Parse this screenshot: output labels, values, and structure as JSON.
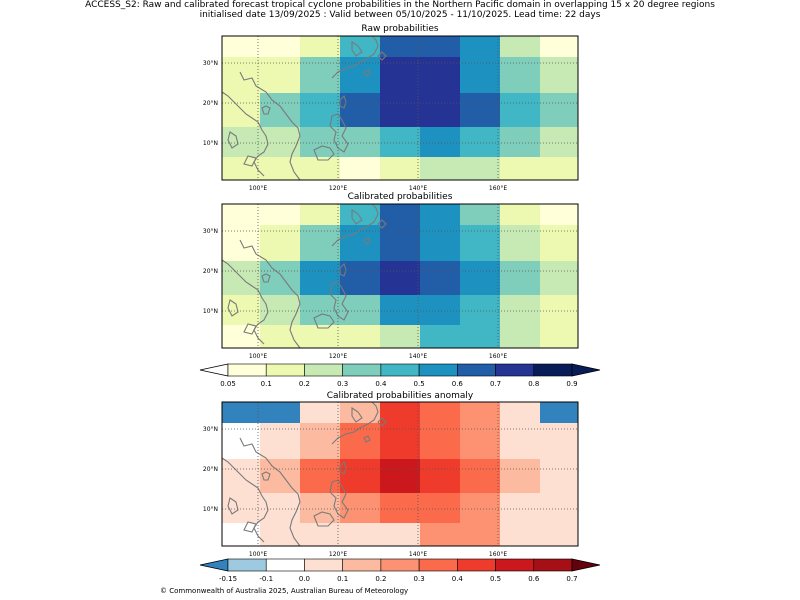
{
  "header": {
    "line1": "ACCESS_S2: Raw and calibrated forecast tropical cyclone probabilities in the Northern Pacific domain in overlapping 15 x 20 degree regions",
    "line2": "initialised date 13/09/2025 :  Valid between 05/10/2025 - 11/10/2025. Lead time: 22 days"
  },
  "maps": [
    {
      "title": "Raw probabilities",
      "grid": [
        [
          0.05,
          0.05,
          0.15,
          0.45,
          0.65,
          0.65,
          0.55,
          0.25,
          0.05
        ],
        [
          0.15,
          0.15,
          0.35,
          0.55,
          0.75,
          0.75,
          0.55,
          0.35,
          0.25
        ],
        [
          0.15,
          0.35,
          0.45,
          0.65,
          0.75,
          0.75,
          0.65,
          0.45,
          0.35
        ],
        [
          0.25,
          0.25,
          0.35,
          0.35,
          0.45,
          0.55,
          0.45,
          0.35,
          0.25
        ],
        [
          0.15,
          0.15,
          0.15,
          0.05,
          0.15,
          0.25,
          0.25,
          0.15,
          0.15
        ]
      ]
    },
    {
      "title": "Calibrated probabilities",
      "grid": [
        [
          0.05,
          0.05,
          0.15,
          0.45,
          0.65,
          0.55,
          0.35,
          0.15,
          0.05
        ],
        [
          0.05,
          0.15,
          0.35,
          0.55,
          0.65,
          0.55,
          0.45,
          0.25,
          0.15
        ],
        [
          0.25,
          0.35,
          0.55,
          0.65,
          0.75,
          0.65,
          0.55,
          0.35,
          0.25
        ],
        [
          0.15,
          0.25,
          0.35,
          0.35,
          0.55,
          0.55,
          0.45,
          0.25,
          0.15
        ],
        [
          0.05,
          0.15,
          0.15,
          0.15,
          0.25,
          0.45,
          0.45,
          0.25,
          0.15
        ]
      ]
    },
    {
      "title": "Calibrated probabilities anomaly",
      "grid": [
        [
          -0.2,
          -0.2,
          0.0,
          0.15,
          0.45,
          0.35,
          0.25,
          0.0,
          -0.2
        ],
        [
          -0.1,
          0.0,
          0.15,
          0.35,
          0.45,
          0.35,
          0.25,
          0.05,
          0.0
        ],
        [
          0.05,
          0.15,
          0.35,
          0.45,
          0.55,
          0.45,
          0.35,
          0.15,
          0.05
        ],
        [
          0.0,
          0.0,
          0.15,
          0.25,
          0.35,
          0.35,
          0.25,
          0.05,
          0.0
        ],
        [
          -0.1,
          0.0,
          0.0,
          0.0,
          0.05,
          0.25,
          0.25,
          0.05,
          0.0
        ]
      ]
    }
  ],
  "lon_ticks": [
    "100°E",
    "120°E",
    "140°E",
    "160°E"
  ],
  "lat_ticks": [
    "30°N",
    "20°N",
    "10°N"
  ],
  "colorbar_probability": {
    "ticks": [
      "0.05",
      "0.1",
      "0.2",
      "0.3",
      "0.4",
      "0.5",
      "0.6",
      "0.7",
      "0.8",
      "0.9"
    ],
    "colors": [
      "#ffffff",
      "#ffffd9",
      "#edf8b1",
      "#c7e9b4",
      "#7fcdbb",
      "#41b6c4",
      "#1d91c0",
      "#225ea8",
      "#253494",
      "#081d58",
      "#081d58"
    ]
  },
  "colorbar_anomaly": {
    "ticks": [
      "-0.15",
      "-0.1",
      "0.0",
      "0.1",
      "0.2",
      "0.3",
      "0.4",
      "0.5",
      "0.6",
      "0.7"
    ],
    "colors": [
      "#3182bd",
      "#9ecae1",
      "#ffffff",
      "#fee0d2",
      "#fcbba1",
      "#fc9272",
      "#fb6a4a",
      "#ef3b2c",
      "#cb181d",
      "#a50f15",
      "#67000d"
    ]
  },
  "copyright": "© Commonwealth of Australia 2025, Australian Bureau of Meteorology"
}
